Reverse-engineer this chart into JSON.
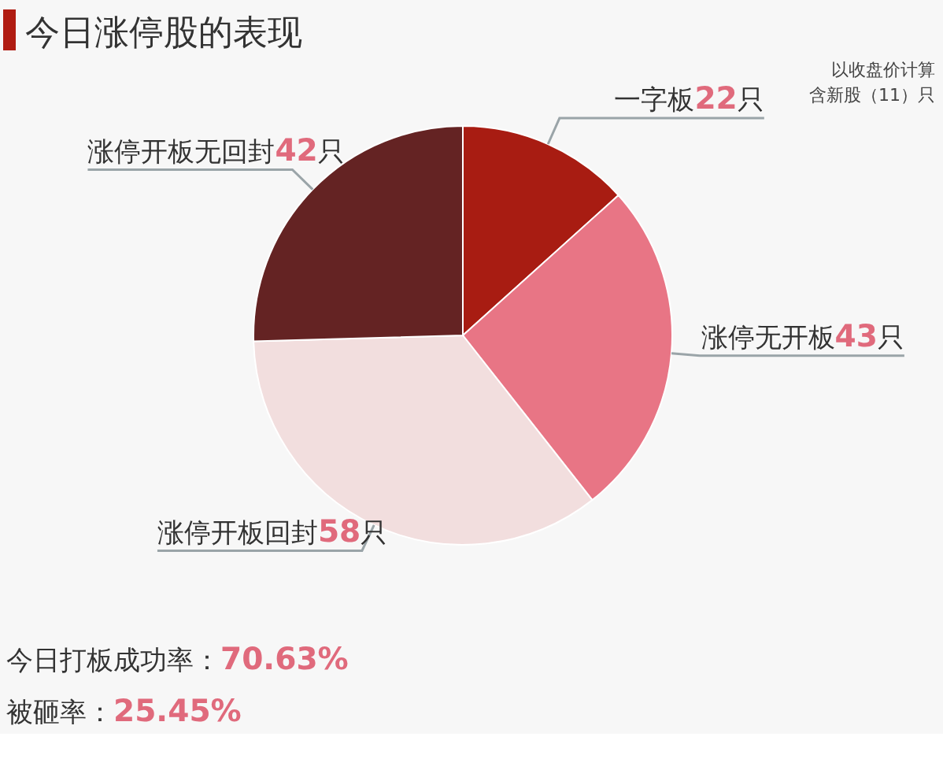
{
  "chart_data": {
    "type": "pie",
    "title": "今日涨停股的表现",
    "categories": [
      "一字板",
      "涨停无开板",
      "涨停开板回封",
      "涨停开板无回封"
    ],
    "values": [
      22,
      43,
      58,
      42
    ],
    "value_labels": [
      "22只",
      "43只",
      "58只",
      "42只"
    ],
    "colors": [
      "#a81c12",
      "#e87585",
      "#f2dede",
      "#642323"
    ],
    "annotations": [
      "以收盘价计算",
      "含新股（11）只",
      "今日打板成功率：70.63%",
      "被砸率：25.45%"
    ]
  }
}
